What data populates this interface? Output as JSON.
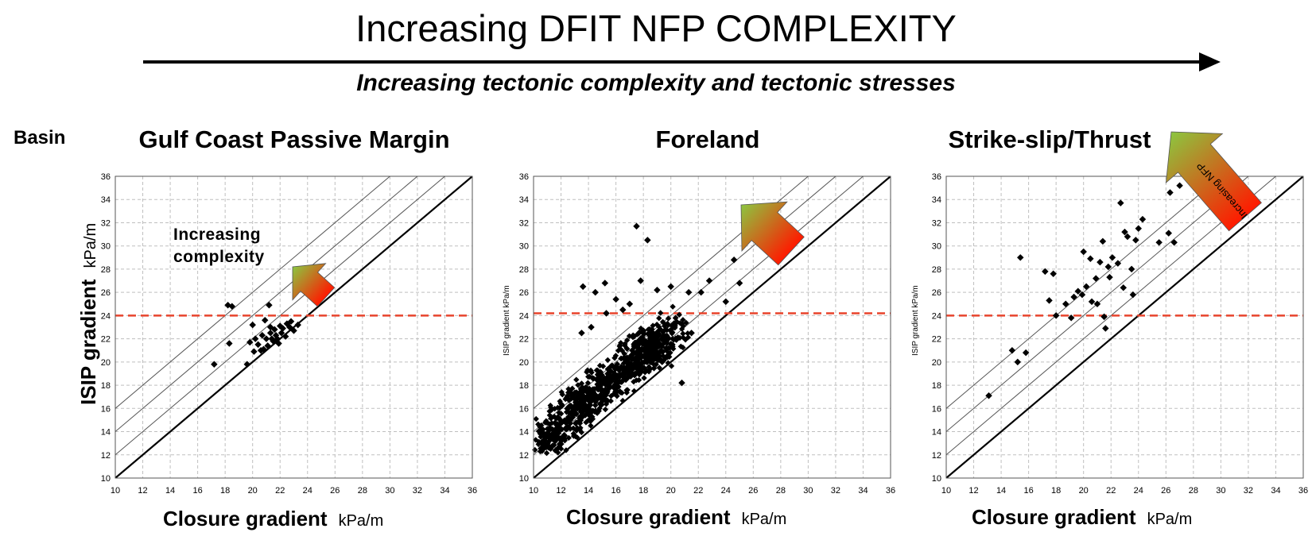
{
  "header": {
    "title": "Increasing DFIT NFP COMPLEXITY",
    "subtitle": "Increasing tectonic complexity and tectonic stresses",
    "row_label": "Basin"
  },
  "colors": {
    "reference_line": "#e8442c",
    "grid": "#bfbfbf",
    "arrow_start": "#ff1a00",
    "arrow_end": "#8cc63f"
  },
  "chart_data": [
    {
      "type": "scatter",
      "title": "Gulf Coast Passive Margin",
      "xlabel": "Closure gradient",
      "xunit": "kPa/m",
      "ylabel": "ISIP gradient",
      "yunit": "kPa/m",
      "xlim": [
        10,
        36
      ],
      "ylim": [
        10,
        36
      ],
      "xticks": [
        "10",
        "12",
        "14",
        "16",
        "18",
        "20",
        "22",
        "24",
        "26",
        "28",
        "30",
        "32",
        "34",
        "36"
      ],
      "yticks": [
        "10",
        "12",
        "14",
        "16",
        "18",
        "20",
        "22",
        "24",
        "26",
        "28",
        "30",
        "32",
        "34",
        "36"
      ],
      "grid": true,
      "reference_lines": {
        "horizontal_dashed_y": 24,
        "diagonal_offsets": [
          0,
          2,
          4,
          6
        ]
      },
      "annotation": "Increasing\ncomplexity",
      "points": [
        [
          17.2,
          19.8
        ],
        [
          18.2,
          24.9
        ],
        [
          18.5,
          24.8
        ],
        [
          18.3,
          21.6
        ],
        [
          19.6,
          19.8
        ],
        [
          19.8,
          21.7
        ],
        [
          20.0,
          23.2
        ],
        [
          20.2,
          22.0
        ],
        [
          20.4,
          21.5
        ],
        [
          20.6,
          21.0
        ],
        [
          20.7,
          22.3
        ],
        [
          20.9,
          23.6
        ],
        [
          21.0,
          22.0
        ],
        [
          21.1,
          21.4
        ],
        [
          21.2,
          24.9
        ],
        [
          21.3,
          22.5
        ],
        [
          21.4,
          22.0
        ],
        [
          21.5,
          21.8
        ],
        [
          21.6,
          22.8
        ],
        [
          21.7,
          22.3
        ],
        [
          21.8,
          22.0
        ],
        [
          21.9,
          21.6
        ],
        [
          22.0,
          23.1
        ],
        [
          22.1,
          22.5
        ],
        [
          22.2,
          22.9
        ],
        [
          22.4,
          22.2
        ],
        [
          22.5,
          23.3
        ],
        [
          22.7,
          23.0
        ],
        [
          23.0,
          22.7
        ],
        [
          23.3,
          23.2
        ],
        [
          20.1,
          20.9
        ],
        [
          20.8,
          21.1
        ],
        [
          21.3,
          23.0
        ],
        [
          22.8,
          23.5
        ]
      ]
    },
    {
      "type": "scatter",
      "title": "Foreland",
      "xlabel": "Closure gradient",
      "xunit": "kPa/m",
      "ylabel": "ISIP gradient kPa/m",
      "xlim": [
        10,
        36
      ],
      "ylim": [
        10,
        36
      ],
      "xticks": [
        "10",
        "12",
        "14",
        "16",
        "18",
        "20",
        "22",
        "24",
        "26",
        "28",
        "30",
        "32",
        "34",
        "36"
      ],
      "yticks": [
        "10",
        "12",
        "14",
        "16",
        "18",
        "20",
        "22",
        "24",
        "26",
        "28",
        "30",
        "32",
        "34",
        "36"
      ],
      "grid": true,
      "reference_lines": {
        "horizontal_dashed_y": 24.2,
        "diagonal_offsets": [
          0,
          2,
          4,
          6
        ]
      },
      "points": [
        [
          17.5,
          31.7
        ],
        [
          18.3,
          30.5
        ],
        [
          13.6,
          26.5
        ],
        [
          14.5,
          26.0
        ],
        [
          15.2,
          26.8
        ],
        [
          16.0,
          25.4
        ],
        [
          17.0,
          25.0
        ],
        [
          17.8,
          27.0
        ],
        [
          19.0,
          26.2
        ],
        [
          20.0,
          26.5
        ],
        [
          21.3,
          26.0
        ],
        [
          22.2,
          26.0
        ],
        [
          22.8,
          27.0
        ],
        [
          24.0,
          25.2
        ],
        [
          24.6,
          28.8
        ],
        [
          25.0,
          26.8
        ],
        [
          20.8,
          18.2
        ],
        [
          21.5,
          22.5
        ],
        [
          19.8,
          22.0
        ],
        [
          16.5,
          24.5
        ],
        [
          15.3,
          24.2
        ],
        [
          14.2,
          23.0
        ],
        [
          13.5,
          22.5
        ]
      ],
      "dense_cloud": {
        "description_points": [
          [
            10.8,
            12.3
          ],
          [
            11.2,
            13.5
          ],
          [
            11.8,
            15.0
          ],
          [
            12.2,
            14.0
          ],
          [
            12.8,
            16.5
          ],
          [
            13.0,
            15.0
          ],
          [
            13.5,
            17.5
          ],
          [
            14.0,
            16.0
          ],
          [
            14.5,
            18.0
          ],
          [
            15.0,
            17.0
          ],
          [
            15.5,
            19.0
          ],
          [
            16.0,
            18.0
          ],
          [
            16.5,
            20.0
          ],
          [
            17.0,
            19.5
          ],
          [
            17.5,
            21.0
          ],
          [
            18.0,
            20.0
          ],
          [
            18.5,
            22.0
          ],
          [
            19.0,
            21.0
          ],
          [
            19.5,
            22.5
          ],
          [
            20.0,
            21.5
          ]
        ]
      }
    },
    {
      "type": "scatter",
      "title": "Strike-slip/Thrust",
      "xlabel": "Closure gradient",
      "xunit": "kPa/m",
      "ylabel": "ISIP gradient kPa/m",
      "xlim": [
        10,
        36
      ],
      "ylim": [
        10,
        36
      ],
      "xticks": [
        "10",
        "12",
        "14",
        "16",
        "18",
        "20",
        "22",
        "24",
        "26",
        "28",
        "30",
        "32",
        "34",
        "36"
      ],
      "yticks": [
        "10",
        "12",
        "14",
        "16",
        "18",
        "20",
        "22",
        "24",
        "26",
        "28",
        "30",
        "32",
        "34",
        "36"
      ],
      "grid": true,
      "reference_lines": {
        "horizontal_dashed_y": 24,
        "diagonal_offsets": [
          0,
          2,
          4,
          6
        ]
      },
      "arrow_label": "Increasing NFP",
      "points": [
        [
          13.1,
          17.1
        ],
        [
          14.8,
          21.0
        ],
        [
          15.2,
          20.0
        ],
        [
          15.8,
          20.8
        ],
        [
          15.4,
          29.0
        ],
        [
          17.2,
          27.8
        ],
        [
          17.8,
          27.6
        ],
        [
          17.5,
          25.3
        ],
        [
          18.0,
          24.0
        ],
        [
          18.7,
          25.0
        ],
        [
          19.1,
          23.8
        ],
        [
          19.3,
          25.6
        ],
        [
          19.6,
          26.1
        ],
        [
          19.9,
          25.8
        ],
        [
          20.2,
          26.5
        ],
        [
          20.6,
          25.2
        ],
        [
          20.9,
          27.2
        ],
        [
          21.0,
          25.0
        ],
        [
          21.2,
          28.6
        ],
        [
          21.4,
          30.4
        ],
        [
          21.5,
          23.9
        ],
        [
          21.6,
          22.9
        ],
        [
          21.8,
          28.2
        ],
        [
          22.1,
          29.0
        ],
        [
          22.5,
          28.5
        ],
        [
          22.7,
          33.7
        ],
        [
          23.0,
          31.2
        ],
        [
          23.2,
          30.8
        ],
        [
          23.5,
          28.0
        ],
        [
          23.8,
          30.5
        ],
        [
          24.0,
          31.5
        ],
        [
          24.3,
          32.3
        ],
        [
          20.0,
          29.5
        ],
        [
          20.5,
          28.9
        ],
        [
          22.9,
          26.4
        ],
        [
          25.5,
          30.3
        ],
        [
          26.2,
          31.1
        ],
        [
          26.6,
          30.3
        ],
        [
          27.0,
          35.2
        ],
        [
          26.3,
          34.6
        ],
        [
          23.6,
          25.8
        ],
        [
          21.9,
          27.3
        ]
      ]
    }
  ]
}
